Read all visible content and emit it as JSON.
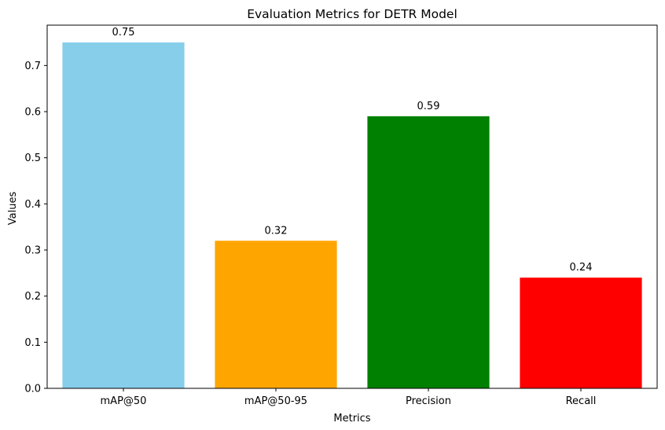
{
  "chart_data": {
    "type": "bar",
    "title": "Evaluation Metrics for DETR Model",
    "xlabel": "Metrics",
    "ylabel": "Values",
    "categories": [
      "mAP@50",
      "mAP@50-95",
      "Precision",
      "Recall"
    ],
    "values": [
      0.75,
      0.32,
      0.59,
      0.24
    ],
    "value_labels": [
      "0.75",
      "0.32",
      "0.59",
      "0.24"
    ],
    "colors": [
      "#87ceeb",
      "#ffa500",
      "#008000",
      "#ff0000"
    ],
    "ylim": [
      0,
      0.7875
    ],
    "yticks": [
      0.0,
      0.1,
      0.2,
      0.3,
      0.4,
      0.5,
      0.6,
      0.7
    ],
    "ytick_labels": [
      "0.0",
      "0.1",
      "0.2",
      "0.3",
      "0.4",
      "0.5",
      "0.6",
      "0.7"
    ],
    "grid": false,
    "legend": "none"
  }
}
